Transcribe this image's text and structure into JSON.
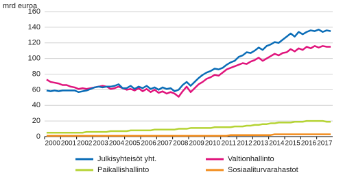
{
  "chart_data": {
    "type": "line",
    "y_label": "mrd euroa",
    "categories": [
      "2000",
      null,
      null,
      null,
      "2001",
      null,
      null,
      null,
      "2002",
      null,
      null,
      null,
      "2003",
      null,
      null,
      null,
      "2004",
      null,
      null,
      null,
      "2005",
      null,
      null,
      null,
      "2006",
      null,
      null,
      null,
      "2007",
      null,
      null,
      null,
      "2008",
      null,
      null,
      null,
      "2009",
      null,
      null,
      null,
      "2010",
      null,
      null,
      null,
      "2011",
      null,
      null,
      null,
      "2012",
      null,
      null,
      null,
      "2013",
      null,
      null,
      null,
      "2014",
      null,
      null,
      null,
      "2015",
      null,
      null,
      null,
      "2016",
      null,
      null,
      null,
      "2017",
      null,
      null,
      null
    ],
    "ylim": [
      0,
      160
    ],
    "yticks": [
      0,
      20,
      40,
      60,
      80,
      100,
      120,
      140,
      160
    ],
    "grid": true,
    "series": [
      {
        "name": "Julkisyhteisöt yht.",
        "color": "#0b6db7",
        "values": [
          59,
          58,
          59,
          58,
          59,
          59,
          59,
          59,
          57,
          58,
          59,
          61,
          63,
          64,
          63,
          64,
          64,
          65,
          67,
          62,
          62,
          65,
          61,
          64,
          62,
          65,
          61,
          63,
          60,
          63,
          61,
          62,
          58,
          60,
          66,
          70,
          65,
          70,
          75,
          79,
          82,
          84,
          87,
          86,
          88,
          92,
          95,
          97,
          102,
          104,
          108,
          107,
          110,
          114,
          111,
          116,
          118,
          121,
          120,
          124,
          128,
          132,
          128,
          134,
          131,
          134,
          136,
          135,
          137,
          134,
          136,
          135
        ]
      },
      {
        "name": "Valtionhallinto",
        "color": "#e0147c",
        "values": [
          73,
          70,
          69,
          68,
          66,
          66,
          64,
          63,
          61,
          62,
          61,
          62,
          63,
          64,
          65,
          64,
          61,
          62,
          64,
          62,
          60,
          61,
          59,
          62,
          58,
          61,
          57,
          60,
          56,
          58,
          55,
          57,
          55,
          51,
          58,
          64,
          57,
          62,
          67,
          70,
          74,
          76,
          79,
          78,
          82,
          86,
          88,
          90,
          92,
          94,
          93,
          96,
          98,
          101,
          97,
          100,
          103,
          106,
          104,
          107,
          108,
          112,
          109,
          113,
          111,
          115,
          113,
          116,
          114,
          116,
          115,
          115
        ]
      },
      {
        "name": "Paikallishallinto",
        "color": "#b5d334",
        "values": [
          5,
          5,
          5,
          5,
          5,
          5,
          5,
          5,
          5,
          5,
          6,
          6,
          6,
          6,
          6,
          6,
          7,
          7,
          7,
          7,
          7,
          8,
          8,
          8,
          8,
          8,
          8,
          9,
          9,
          9,
          9,
          9,
          9,
          10,
          10,
          10,
          11,
          11,
          11,
          11,
          11,
          11,
          12,
          12,
          12,
          12,
          12,
          13,
          13,
          13,
          14,
          14,
          15,
          15,
          16,
          16,
          17,
          17,
          18,
          18,
          18,
          18,
          19,
          19,
          19,
          20,
          20,
          20,
          20,
          20,
          19,
          19
        ]
      },
      {
        "name": "Sosiaaliturvarahastot",
        "color": "#f28c1c",
        "values": [
          1,
          1,
          1,
          1,
          1,
          1,
          1,
          1,
          1,
          1,
          1,
          1,
          1,
          1,
          1,
          1,
          1,
          1,
          1,
          1,
          1,
          1,
          1,
          1,
          1,
          1,
          1,
          1,
          1,
          1,
          1,
          1,
          1,
          1,
          1,
          1,
          1,
          1,
          1,
          1,
          1,
          1,
          1,
          1,
          1,
          1,
          2,
          2,
          2,
          2,
          2,
          2,
          2,
          2,
          2,
          2,
          2,
          3,
          3,
          3,
          3,
          3,
          3,
          3,
          3,
          3,
          3,
          3,
          3,
          3,
          3,
          3
        ]
      }
    ]
  }
}
